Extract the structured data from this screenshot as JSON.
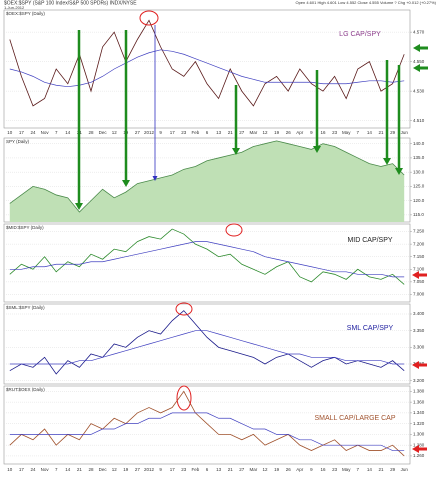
{
  "header": {
    "symbol": "$OEX:$SPY (S&P 100 Index/S&P 500 SPDRs) INDX/NYSE",
    "date": "1-Jun-2012",
    "quote": "Open 4.601 High 4.601 Low 4.552 Close 4.555 Volume ? Chg +0.012 (+0.27%)"
  },
  "chart_data": [
    {
      "type": "line",
      "title": "$OEX:$SPY (Daily)",
      "label": "LG CAP/SPY",
      "categories": [
        "10",
        "17",
        "24",
        "Nov",
        "7",
        "14",
        "21",
        "28",
        "Dec",
        "12",
        "19",
        "27",
        "2012",
        "9",
        "17",
        "23",
        "Feb",
        "6",
        "13",
        "21",
        "27",
        "Mar",
        "12",
        "19",
        "26",
        "Apr",
        "9",
        "16",
        "23",
        "May",
        "7",
        "14",
        "21",
        "29",
        "Jun"
      ],
      "series": [
        {
          "color": "#5a1a1a",
          "values": [
            4.565,
            4.54,
            4.52,
            4.525,
            4.545,
            4.535,
            4.555,
            4.53,
            4.56,
            4.57,
            4.55,
            4.565,
            4.578,
            4.56,
            4.545,
            4.54,
            4.55,
            4.535,
            4.525,
            4.545,
            4.53,
            4.52,
            4.535,
            4.54,
            4.53,
            4.545,
            4.535,
            4.53,
            4.54,
            4.525,
            4.545,
            4.55,
            4.53,
            4.535,
            4.555
          ]
        },
        {
          "color": "#4040c0",
          "values": [
            4.545,
            4.543,
            4.54,
            4.536,
            4.534,
            4.533,
            4.534,
            4.536,
            4.54,
            4.545,
            4.549,
            4.553,
            4.556,
            4.558,
            4.557,
            4.555,
            4.552,
            4.549,
            4.546,
            4.543,
            4.54,
            4.538,
            4.536,
            4.536,
            4.536,
            4.536,
            4.536,
            4.535,
            4.535,
            4.535,
            4.536,
            4.537,
            4.537,
            4.536,
            4.537
          ]
        }
      ],
      "ylim": [
        4.505,
        4.585
      ],
      "yticks": [
        {
          "value": 4.51,
          "label": "4.510"
        },
        {
          "value": 4.53,
          "label": "4.530"
        },
        {
          "value": 4.55,
          "label": "4.550"
        },
        {
          "value": 4.57,
          "label": "4.570"
        }
      ],
      "grid": true
    },
    {
      "type": "area",
      "title": "SPY (Daily)",
      "series": [
        {
          "color": "#4a8a4a",
          "fill": "#bfe0b5",
          "values": [
            119,
            122,
            125,
            124,
            122,
            121,
            116,
            120,
            124,
            121,
            123,
            126,
            127,
            128,
            129,
            131,
            132,
            134,
            135,
            136,
            137,
            139,
            140,
            141,
            140,
            139,
            138,
            140,
            139,
            137,
            135,
            133,
            132,
            133,
            129
          ]
        }
      ],
      "ylim": [
        112.5,
        142
      ],
      "yticks": [
        {
          "value": 115,
          "label": "115.0"
        },
        {
          "value": 120,
          "label": "120.0"
        },
        {
          "value": 125,
          "label": "125.0"
        },
        {
          "value": 130,
          "label": "130.0"
        },
        {
          "value": 135,
          "label": "135.0"
        },
        {
          "value": 140,
          "label": "140.0"
        }
      ],
      "grid": true
    },
    {
      "type": "line",
      "title": "$MID:$SPY (Daily)",
      "label": "MID CAP/SPY",
      "series": [
        {
          "color": "#2e8b2e",
          "values": [
            7.08,
            7.12,
            7.1,
            7.15,
            7.09,
            7.13,
            7.11,
            7.16,
            7.14,
            7.18,
            7.17,
            7.21,
            7.23,
            7.22,
            7.26,
            7.24,
            7.2,
            7.18,
            7.15,
            7.16,
            7.12,
            7.1,
            7.08,
            7.11,
            7.13,
            7.07,
            7.05,
            7.09,
            7.08,
            7.06,
            7.1,
            7.07,
            7.06,
            7.08,
            7.04
          ]
        },
        {
          "color": "#4040c0",
          "values": [
            7.1,
            7.1,
            7.11,
            7.11,
            7.12,
            7.12,
            7.12,
            7.13,
            7.13,
            7.14,
            7.15,
            7.16,
            7.17,
            7.18,
            7.19,
            7.2,
            7.21,
            7.21,
            7.2,
            7.19,
            7.18,
            7.17,
            7.15,
            7.14,
            7.13,
            7.12,
            7.11,
            7.1,
            7.09,
            7.09,
            7.08,
            7.08,
            7.08,
            7.07,
            7.07
          ]
        }
      ],
      "ylim": [
        6.97,
        7.28
      ],
      "yticks": [
        {
          "value": 7.0,
          "label": "7.000"
        },
        {
          "value": 7.05,
          "label": "7.050"
        },
        {
          "value": 7.1,
          "label": "7.100"
        },
        {
          "value": 7.15,
          "label": "7.150"
        },
        {
          "value": 7.2,
          "label": "7.200"
        },
        {
          "value": 7.25,
          "label": "7.250"
        }
      ],
      "grid": true
    },
    {
      "type": "line",
      "title": "$SML:$SPY (Daily)",
      "label": "SML CAP/SPY",
      "series": [
        {
          "color": "#1a1a8a",
          "values": [
            3.23,
            3.25,
            3.24,
            3.27,
            3.22,
            3.26,
            3.24,
            3.28,
            3.27,
            3.31,
            3.3,
            3.33,
            3.35,
            3.34,
            3.38,
            3.41,
            3.37,
            3.33,
            3.3,
            3.29,
            3.28,
            3.27,
            3.25,
            3.27,
            3.28,
            3.26,
            3.24,
            3.26,
            3.27,
            3.25,
            3.26,
            3.25,
            3.24,
            3.26,
            3.23
          ]
        },
        {
          "color": "#4040c0",
          "values": [
            3.25,
            3.25,
            3.25,
            3.25,
            3.25,
            3.25,
            3.26,
            3.26,
            3.27,
            3.28,
            3.29,
            3.3,
            3.31,
            3.32,
            3.33,
            3.34,
            3.35,
            3.35,
            3.34,
            3.33,
            3.32,
            3.31,
            3.3,
            3.29,
            3.28,
            3.28,
            3.27,
            3.27,
            3.27,
            3.26,
            3.26,
            3.26,
            3.26,
            3.25,
            3.25
          ]
        }
      ],
      "ylim": [
        3.19,
        3.43
      ],
      "yticks": [
        {
          "value": 3.2,
          "label": "3.200"
        },
        {
          "value": 3.25,
          "label": "3.250"
        },
        {
          "value": 3.3,
          "label": "3.300"
        },
        {
          "value": 3.35,
          "label": "3.350"
        },
        {
          "value": 3.4,
          "label": "3.400"
        }
      ],
      "grid": true
    },
    {
      "type": "line",
      "title": "$RUT:$OEX (Daily)",
      "label": "SMALL CAP/LARGE CAP",
      "categories": [
        "10",
        "17",
        "24",
        "Nov",
        "7",
        "14",
        "21",
        "28",
        "Dec",
        "12",
        "19",
        "27",
        "2012",
        "9",
        "17",
        "23",
        "Feb",
        "6",
        "13",
        "21",
        "27",
        "Mar",
        "12",
        "19",
        "26",
        "Apr",
        "9",
        "16",
        "23",
        "May",
        "7",
        "14",
        "21",
        "29",
        "Jun"
      ],
      "series": [
        {
          "color": "#a0522d",
          "values": [
            1.28,
            1.3,
            1.29,
            1.31,
            1.28,
            1.3,
            1.29,
            1.32,
            1.31,
            1.33,
            1.32,
            1.34,
            1.35,
            1.34,
            1.35,
            1.38,
            1.34,
            1.32,
            1.3,
            1.3,
            1.29,
            1.3,
            1.28,
            1.29,
            1.3,
            1.28,
            1.27,
            1.28,
            1.29,
            1.27,
            1.28,
            1.27,
            1.27,
            1.28,
            1.26
          ]
        },
        {
          "color": "#4040c0",
          "values": [
            1.3,
            1.3,
            1.3,
            1.3,
            1.3,
            1.3,
            1.3,
            1.3,
            1.31,
            1.31,
            1.32,
            1.32,
            1.33,
            1.33,
            1.34,
            1.34,
            1.34,
            1.34,
            1.33,
            1.33,
            1.32,
            1.31,
            1.31,
            1.3,
            1.3,
            1.29,
            1.29,
            1.28,
            1.28,
            1.28,
            1.28,
            1.28,
            1.28,
            1.27,
            1.27
          ]
        }
      ],
      "ylim": [
        1.245,
        1.39
      ],
      "yticks": [
        {
          "value": 1.26,
          "label": "1.260"
        },
        {
          "value": 1.28,
          "label": "1.280"
        },
        {
          "value": 1.3,
          "label": "1.300"
        },
        {
          "value": 1.32,
          "label": "1.320"
        },
        {
          "value": 1.34,
          "label": "1.340"
        },
        {
          "value": 1.36,
          "label": "1.360"
        },
        {
          "value": 1.38,
          "label": "1.380"
        }
      ],
      "grid": true
    }
  ]
}
